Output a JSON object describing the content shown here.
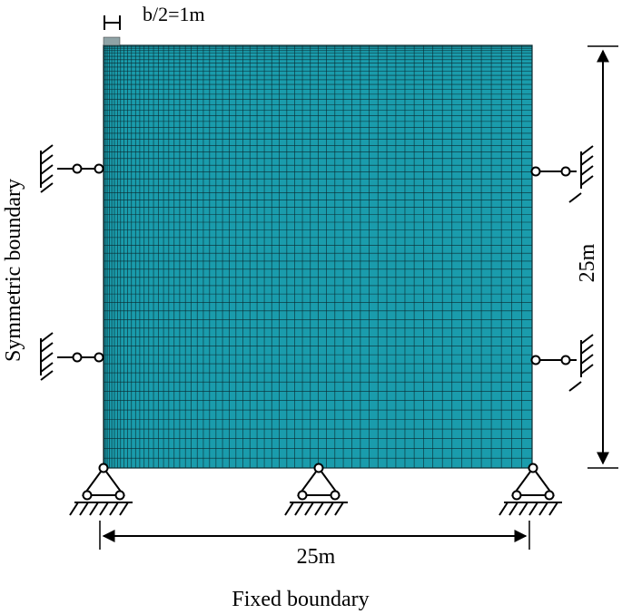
{
  "labels": {
    "half_width": "b/2=1m",
    "height": "25m",
    "width": "25m",
    "left_side": "Symmetric boundary",
    "bottom_side": "Fixed boundary"
  },
  "mesh": {
    "fill_color": "#1a9cac",
    "line_color": "#0a2a30",
    "refinement": "graded mesh, finer toward top-left corner"
  },
  "supports": {
    "left": [
      "roller-support",
      "roller-support"
    ],
    "right": [
      "roller-support",
      "roller-support"
    ],
    "bottom": [
      "pin-support",
      "pin-support",
      "pin-support"
    ]
  }
}
